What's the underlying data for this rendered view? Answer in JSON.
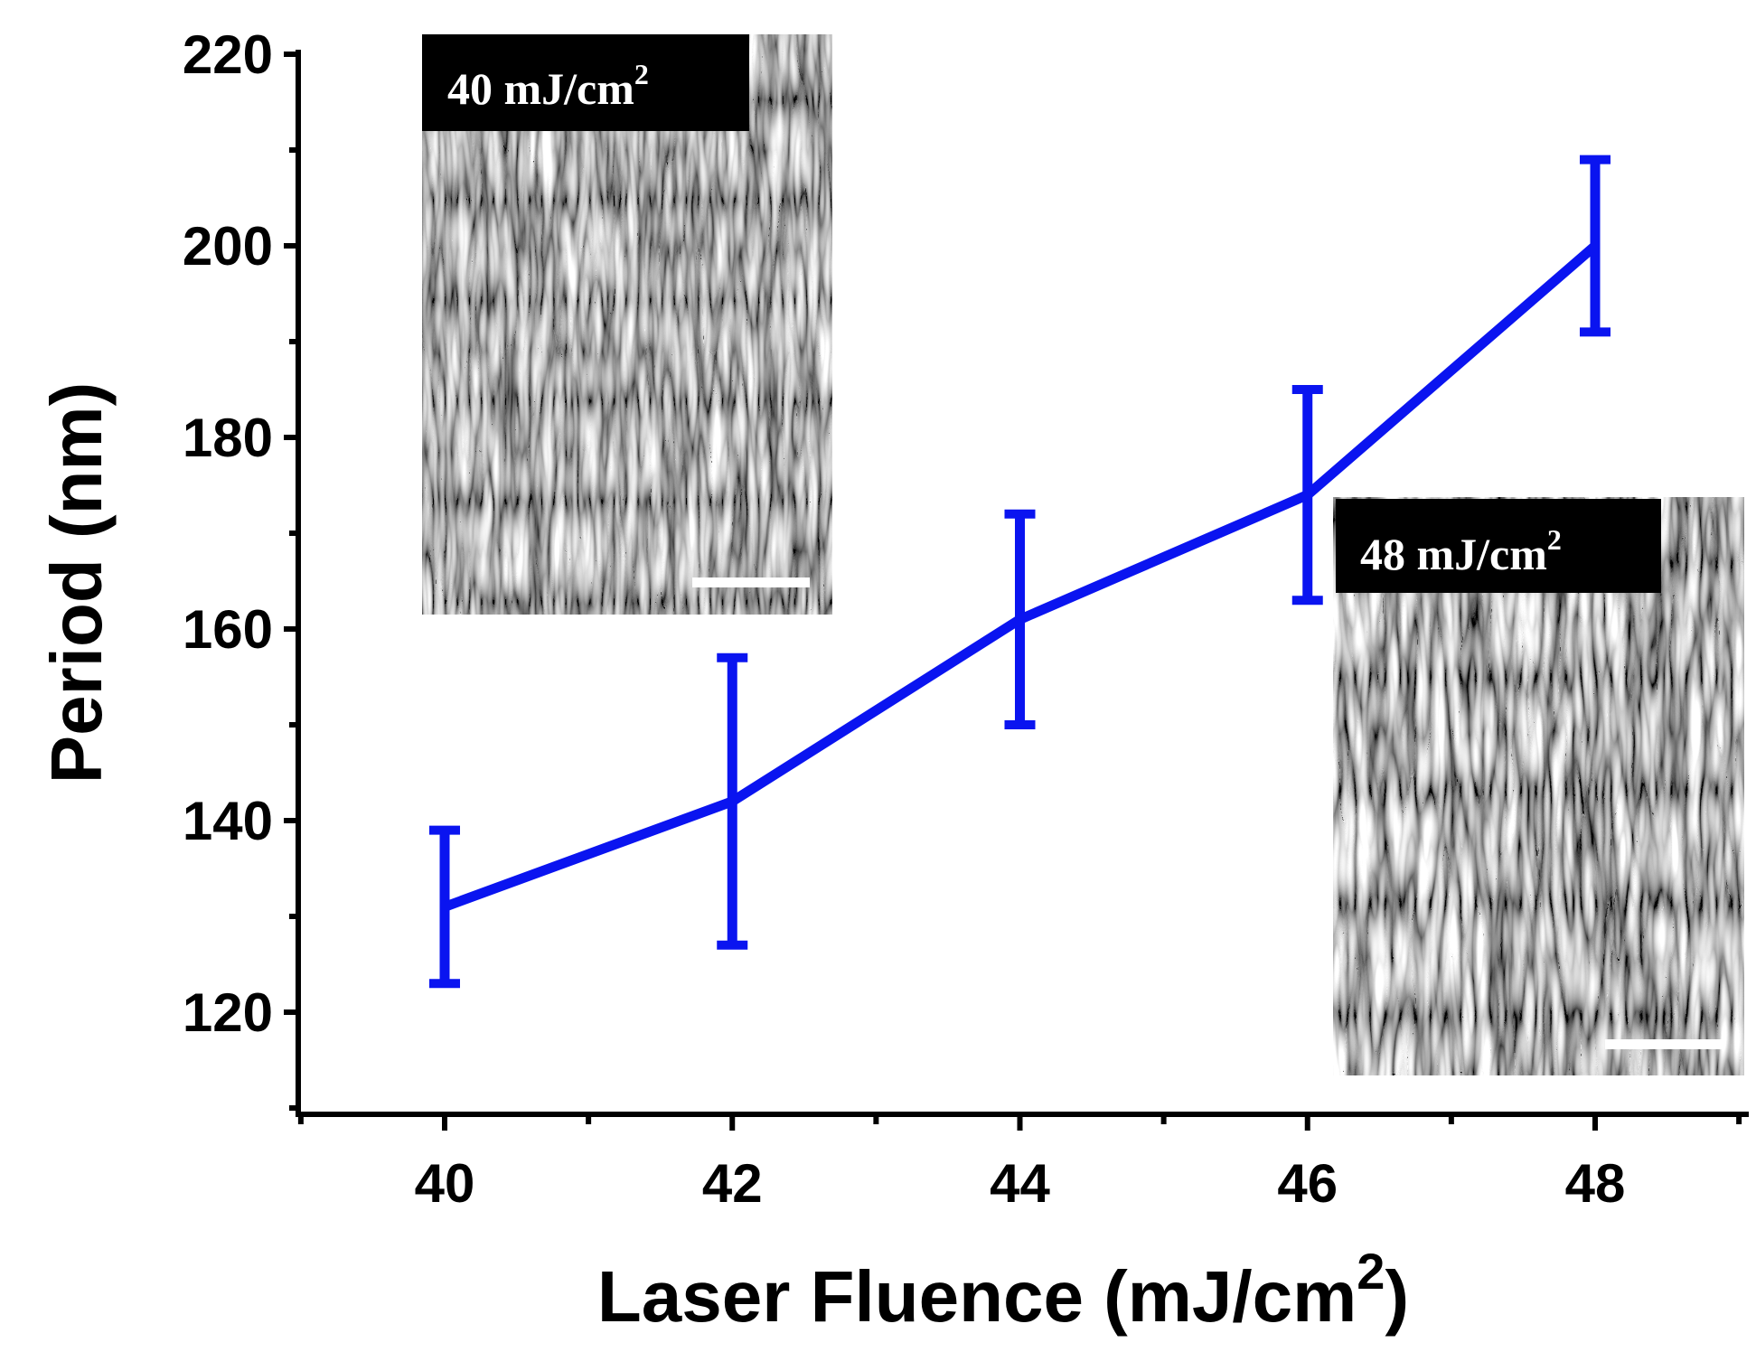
{
  "chart_data": {
    "type": "line",
    "x": [
      40,
      42,
      44,
      46,
      48
    ],
    "series": [
      {
        "values": [
          131,
          142,
          161,
          174,
          200
        ],
        "err_low": [
          123,
          127,
          150,
          163,
          191
        ],
        "err_high": [
          139,
          157,
          172,
          185,
          209
        ],
        "color": "#0a14f0"
      }
    ],
    "xlabel": "Laser Fluence (mJ/cm",
    "xlabel_sup": "2",
    "xlabel_close": ")",
    "ylabel": "Period (nm)",
    "xlim": [
      39,
      49
    ],
    "ylim": [
      110,
      220
    ],
    "xticks": [
      40,
      42,
      44,
      46,
      48
    ],
    "yticks": [
      120,
      140,
      160,
      180,
      200,
      220
    ],
    "grid": false,
    "insets": [
      {
        "label": "40 mJ/cm",
        "label_sup": "2",
        "position": "top-left"
      },
      {
        "label": "48 mJ/cm",
        "label_sup": "2",
        "position": "bottom-right"
      }
    ]
  }
}
